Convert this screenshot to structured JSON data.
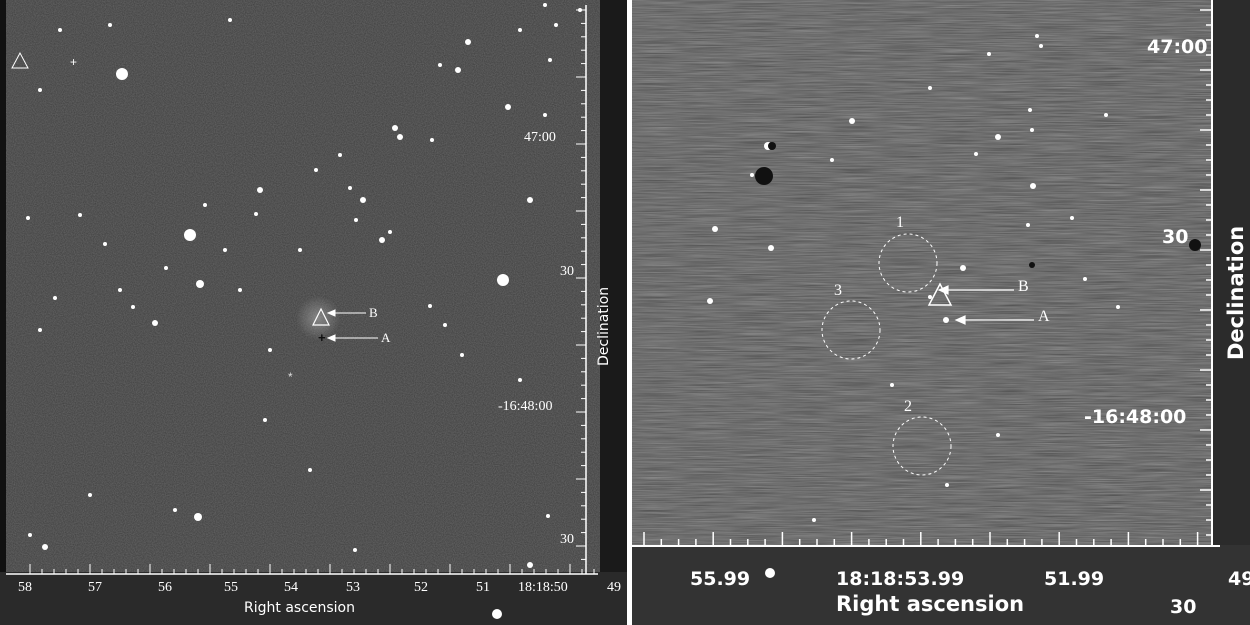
{
  "left_panel": {
    "ra_ticks": [
      "58",
      "57",
      "56",
      "55",
      "54",
      "53",
      "52",
      "51",
      "18:18:50",
      "49"
    ],
    "dec_ticks": [
      "47:00",
      "30",
      "-16:48:00",
      "30"
    ],
    "xlabel": "Right ascension",
    "ylabel": "Declination",
    "markers": {
      "a": "A",
      "b": "B"
    }
  },
  "right_panel": {
    "ra_ticks": [
      "55.99",
      "18:18:53.99",
      "51.99",
      "49"
    ],
    "dec_ticks": [
      "47:00",
      "30",
      "-16:48:00",
      "30"
    ],
    "xlabel": "Right ascension",
    "ylabel": "Declination",
    "markers": {
      "a": "A",
      "b": "B"
    },
    "regions": [
      "1",
      "2",
      "3"
    ]
  }
}
